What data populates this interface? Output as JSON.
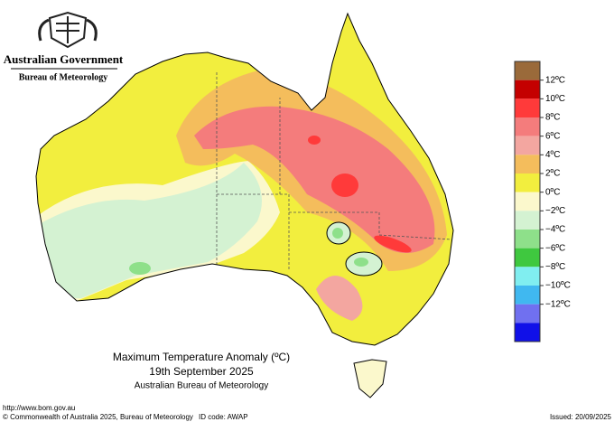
{
  "header": {
    "government": "Australian Government",
    "agency": "Bureau of Meteorology"
  },
  "map": {
    "title": "Maximum Temperature Anomaly (ºC)",
    "date": "19th September 2025",
    "source": "Australian Bureau of Meteorology"
  },
  "legend": {
    "colors": [
      "#9a6a3a",
      "#c40000",
      "#ff3a3a",
      "#f47c7c",
      "#f3a6a0",
      "#f4bd5c",
      "#f2ee3e",
      "#fbf8cc",
      "#d4f2d2",
      "#8ee08a",
      "#3fc83f",
      "#80eef0",
      "#40b8f0",
      "#7070f0",
      "#1010e8"
    ],
    "labels": [
      "12ºC",
      "10ºC",
      "8ºC",
      "6ºC",
      "4ºC",
      "2ºC",
      "0ºC",
      "−2ºC",
      "−4ºC",
      "−6ºC",
      "−8ºC",
      "−10ºC",
      "−12ºC"
    ]
  },
  "footer": {
    "url": "http://www.bom.gov.au",
    "copyright": "© Commonwealth of Australia 2025, Bureau of Meteorology",
    "id_code": "ID code: AWAP",
    "issued": "Issued: 20/09/2025"
  }
}
